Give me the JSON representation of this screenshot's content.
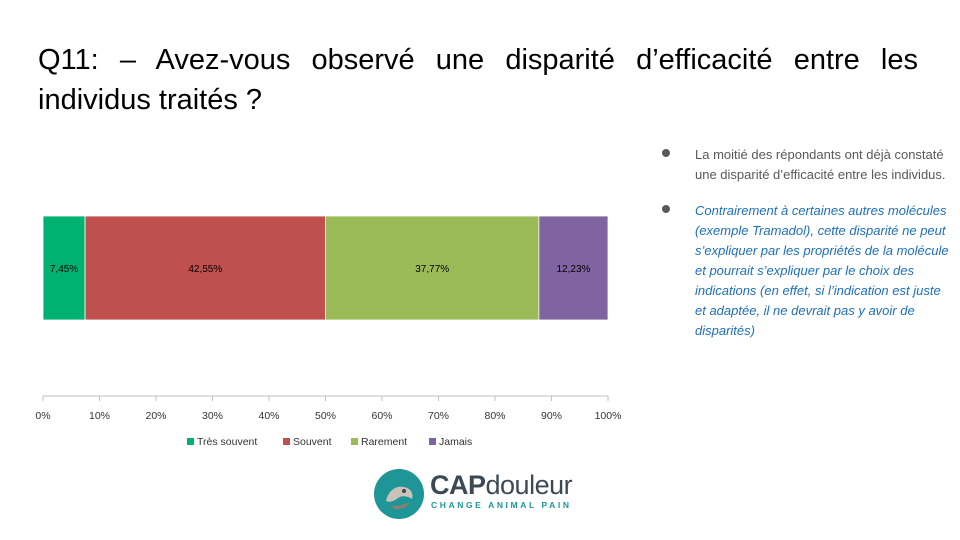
{
  "slide": {
    "title": "Q11: – Avez-vous observé une disparité d’efficacité entre les individus traités ?"
  },
  "bullets": [
    {
      "text": "La moitié des répondants ont déjà constaté une disparité d’efficacité entre les individus."
    },
    {
      "text": "Contrairement à certaines autres molécules (exemple Tramadol), cette disparité ne peut s’expliquer par les propriétés de la molécule et pourrait s’expliquer par le choix des indications (en effet, si l’indication est juste et adaptée, il ne devrait pas y avoir de disparités)"
    }
  ],
  "logo": {
    "name_part1": "CAP",
    "name_part2": "douleur",
    "tagline": "CHANGE ANIMAL PAIN",
    "color": "#1e9597"
  },
  "chart_data": {
    "type": "bar",
    "orientation": "horizontal",
    "stacked": "100%",
    "categories": [
      ""
    ],
    "series": [
      {
        "name": "Très souvent",
        "values": [
          7.45
        ],
        "label": "7,45%",
        "color": "#00b271"
      },
      {
        "name": "Souvent",
        "values": [
          42.55
        ],
        "label": "42,55%",
        "color": "#c0504d"
      },
      {
        "name": "Rarement",
        "values": [
          37.77
        ],
        "label": "37,77%",
        "color": "#9bbb59"
      },
      {
        "name": "Jamais",
        "values": [
          12.23
        ],
        "label": "12,23%",
        "color": "#8064a2"
      }
    ],
    "xlim": [
      0,
      100
    ],
    "xticks": [
      "0%",
      "10%",
      "20%",
      "30%",
      "40%",
      "50%",
      "60%",
      "70%",
      "80%",
      "90%",
      "100%"
    ],
    "grid": false,
    "legend": "bottom"
  }
}
